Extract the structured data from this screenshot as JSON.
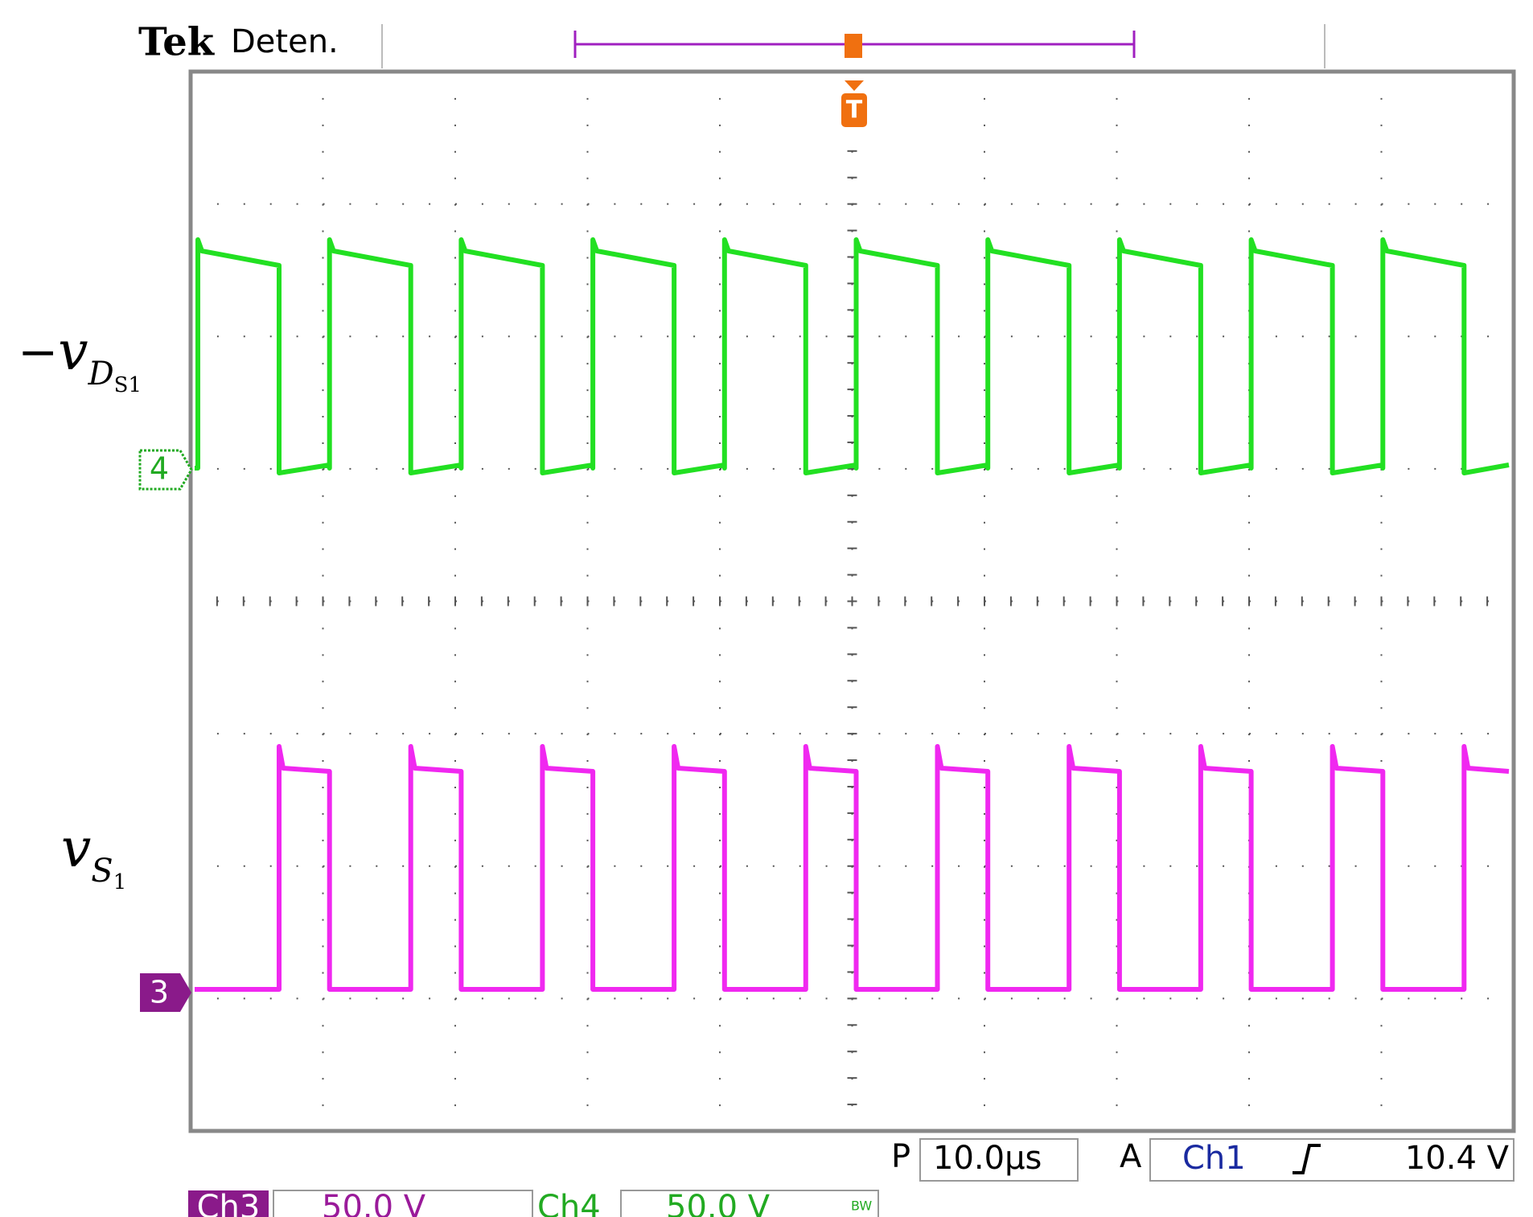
{
  "header": {
    "brand": "Tek",
    "status": "Deten.",
    "trigger_marker": "T"
  },
  "channel_markers": {
    "ch4": "4",
    "ch3": "3"
  },
  "trace_labels": {
    "top": {
      "sign": "−",
      "symbol": "v",
      "sub": "D",
      "subsub": "S1"
    },
    "bottom": {
      "symbol": "v",
      "sub": "S",
      "subsub": "1"
    }
  },
  "status_bar": {
    "timebase_prefix": "P",
    "timebase": "10.0µs",
    "trigger_prefix": "A",
    "trigger_source": "Ch1",
    "trigger_level": "10.4 V",
    "ch3_name": "Ch3",
    "ch3_scale": "50.0 V",
    "ch4_name": "Ch4",
    "ch4_scale": "50.0 V",
    "bandwidth": "BW"
  }
}
